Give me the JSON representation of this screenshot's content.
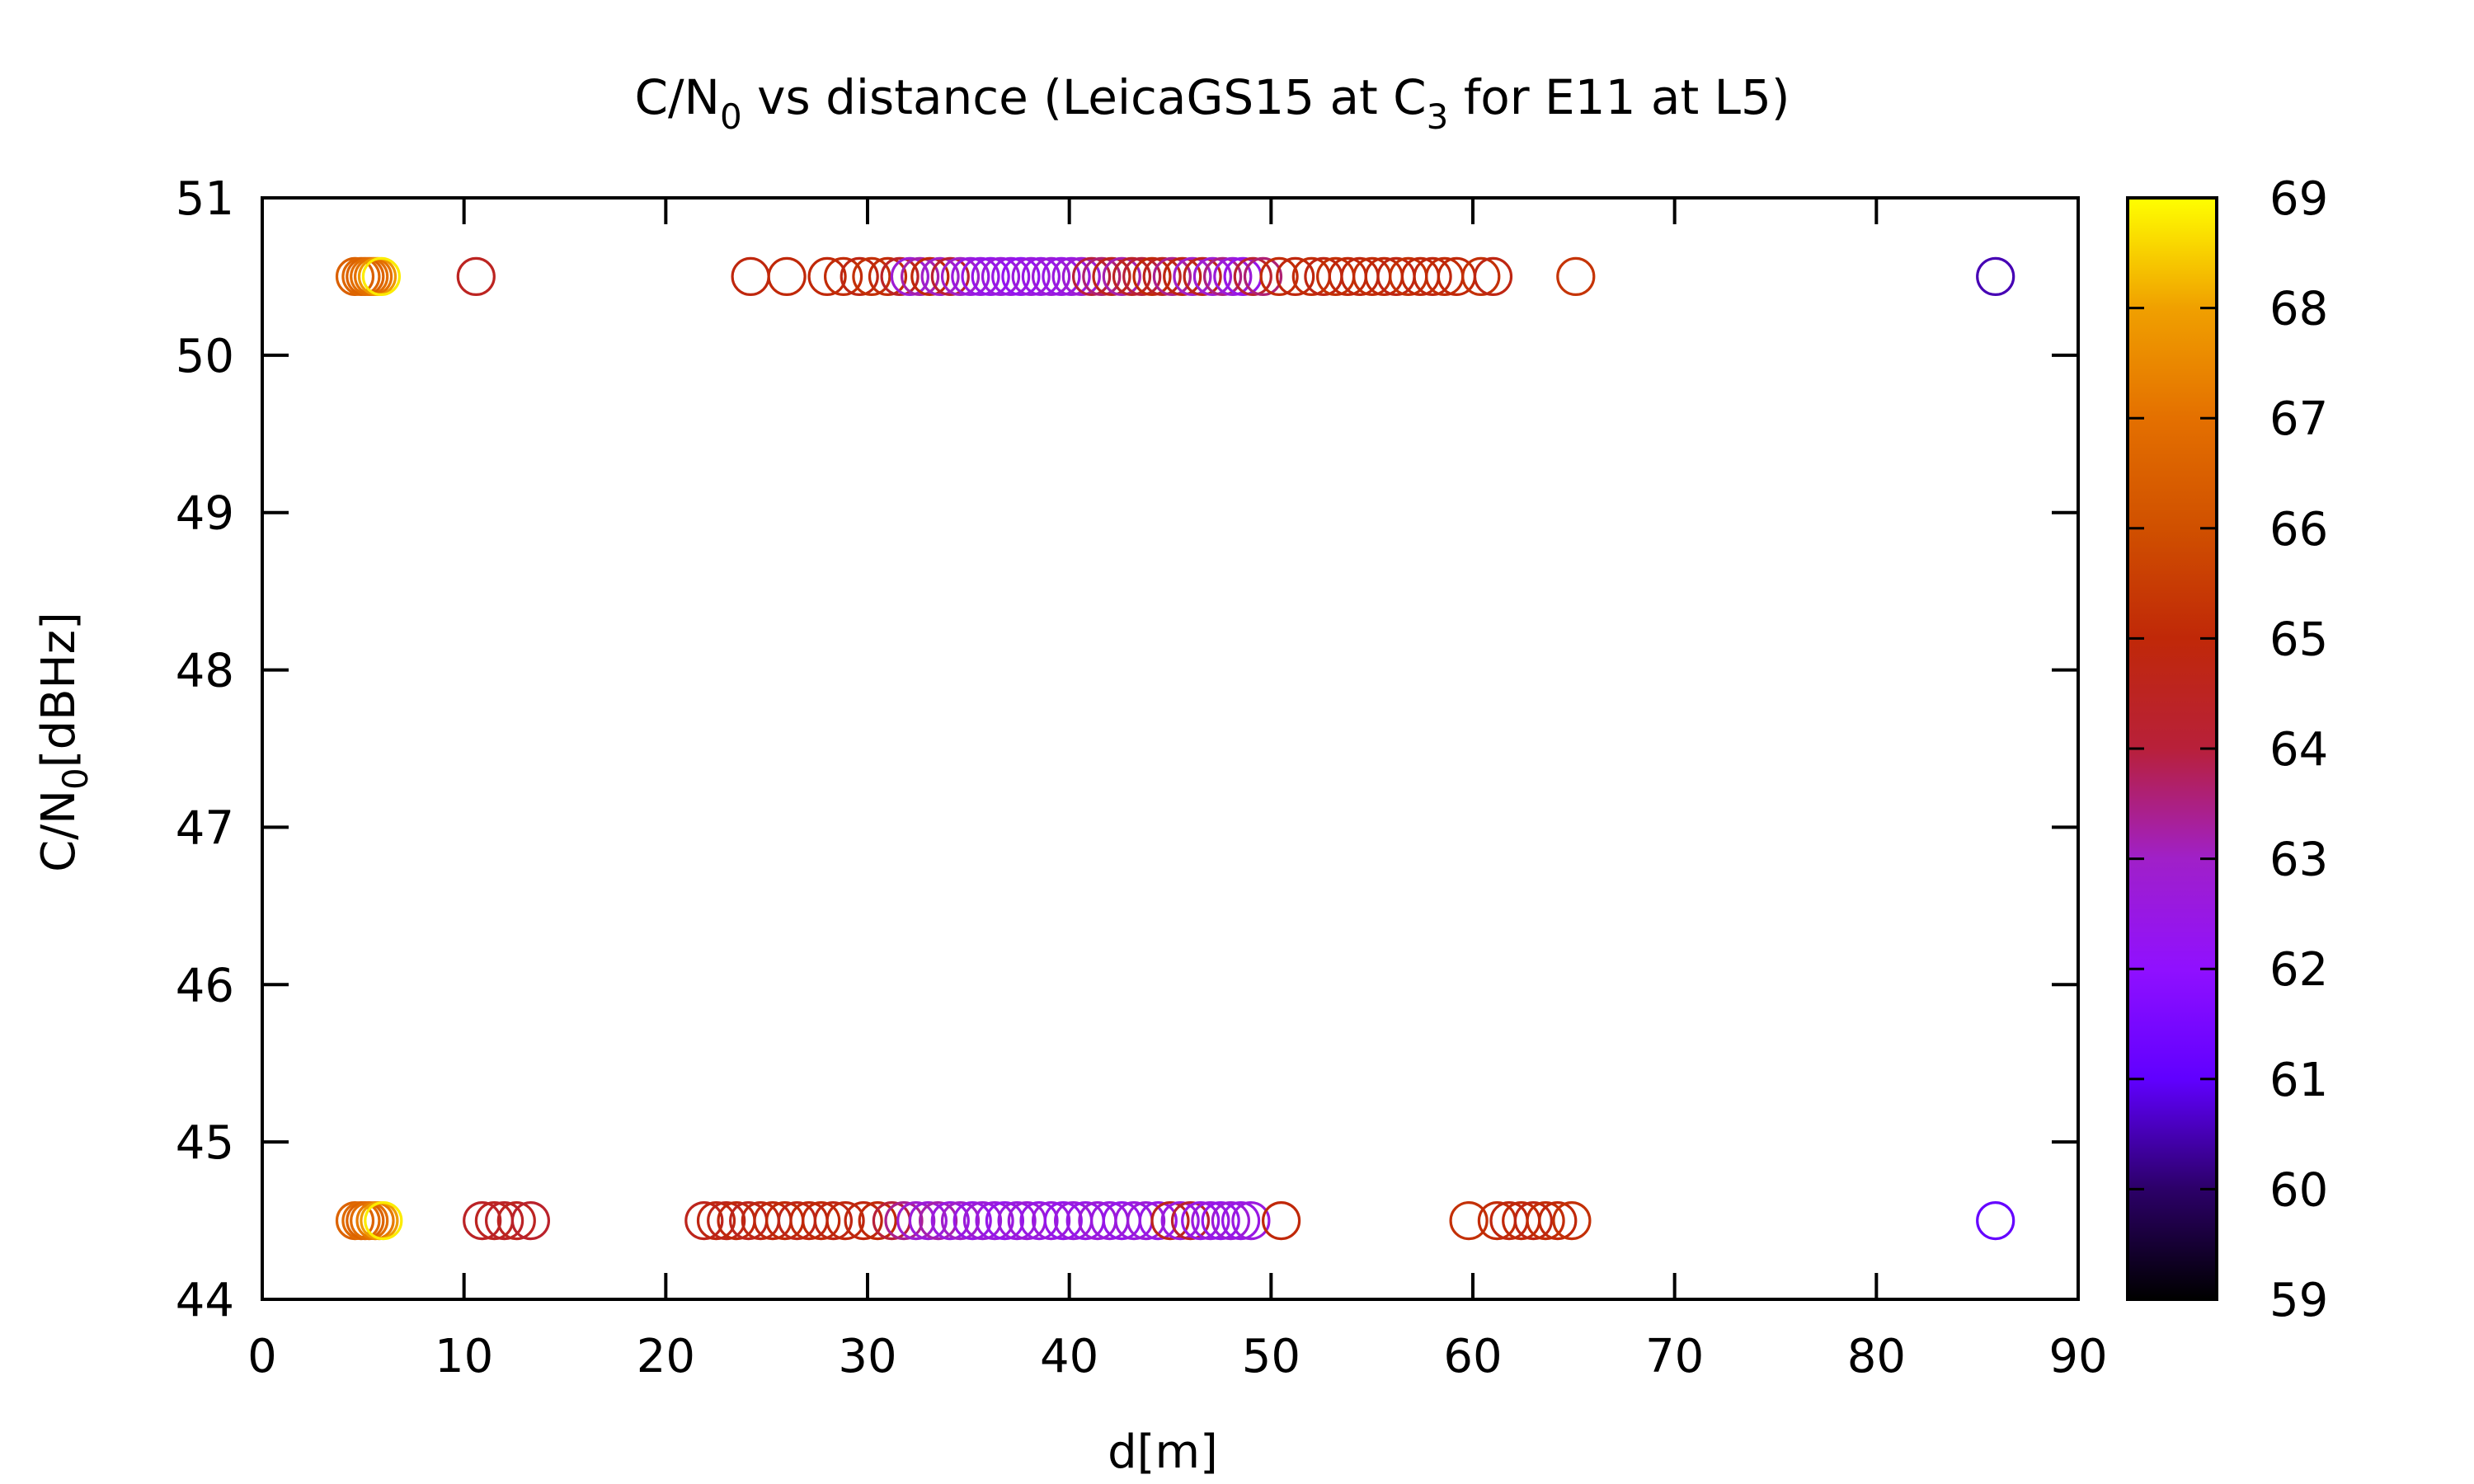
{
  "chart_data": {
    "type": "scatter",
    "title": {
      "main": "C/N",
      "sub0": "0",
      "mid": " vs distance (LeicaGS15 at C",
      "sub3": "3",
      "end": " for E11 at L5)"
    },
    "xlabel": "d[m]",
    "ylabel": {
      "main": "C/N",
      "sub": "0",
      "unit": "[dBHz]"
    },
    "xlim": [
      0,
      90
    ],
    "ylim": [
      44,
      51
    ],
    "xticks": [
      "0",
      "10",
      "20",
      "30",
      "40",
      "50",
      "60",
      "70",
      "80",
      "90"
    ],
    "yticks": [
      "44",
      "45",
      "46",
      "47",
      "48",
      "49",
      "50",
      "51"
    ],
    "colorbar": {
      "range": [
        59,
        69
      ],
      "ticks": [
        "59",
        "60",
        "61",
        "62",
        "63",
        "64",
        "65",
        "66",
        "67",
        "68",
        "69"
      ],
      "palette": "gnuplot black-purple-red-orange-yellow"
    },
    "marker": "open circle",
    "grid": false,
    "series": [
      {
        "y": 50.5,
        "points": [
          [
            4.6,
            66.5
          ],
          [
            4.9,
            66.7
          ],
          [
            5.1,
            66.6
          ],
          [
            5.3,
            66.9
          ],
          [
            5.5,
            67.0
          ],
          [
            5.7,
            67.8
          ],
          [
            5.9,
            68.8
          ],
          [
            10.6,
            64.5
          ],
          [
            24.2,
            64.9
          ],
          [
            26.0,
            65.0
          ],
          [
            28.0,
            65.0
          ],
          [
            28.8,
            65.1
          ],
          [
            29.6,
            64.8
          ],
          [
            30.2,
            65.2
          ],
          [
            31.0,
            65.1
          ],
          [
            31.6,
            64.4
          ],
          [
            32.1,
            62.8
          ],
          [
            32.6,
            63.2
          ],
          [
            33.1,
            65.0
          ],
          [
            33.6,
            63.0
          ],
          [
            34.1,
            64.2
          ],
          [
            34.6,
            63.0
          ],
          [
            35.1,
            62.6
          ],
          [
            35.6,
            62.5
          ],
          [
            36.1,
            62.4
          ],
          [
            36.6,
            62.6
          ],
          [
            37.1,
            62.5
          ],
          [
            37.6,
            62.3
          ],
          [
            38.1,
            62.6
          ],
          [
            38.6,
            62.5
          ],
          [
            39.1,
            62.7
          ],
          [
            39.6,
            62.5
          ],
          [
            40.1,
            62.6
          ],
          [
            40.6,
            62.8
          ],
          [
            41.1,
            64.0
          ],
          [
            41.6,
            63.6
          ],
          [
            42.1,
            64.6
          ],
          [
            42.6,
            63.2
          ],
          [
            43.1,
            64.4
          ],
          [
            43.6,
            64.0
          ],
          [
            44.1,
            65.0
          ],
          [
            44.6,
            64.6
          ],
          [
            45.1,
            63.4
          ],
          [
            45.6,
            64.8
          ],
          [
            46.1,
            63.0
          ],
          [
            46.6,
            64.6
          ],
          [
            47.1,
            62.8
          ],
          [
            47.6,
            63.5
          ],
          [
            48.1,
            62.7
          ],
          [
            48.6,
            62.4
          ],
          [
            49.1,
            64.2
          ],
          [
            49.6,
            63.6
          ],
          [
            50.4,
            65.1
          ],
          [
            51.2,
            64.9
          ],
          [
            52.0,
            65.1
          ],
          [
            52.6,
            64.8
          ],
          [
            53.2,
            65.2
          ],
          [
            53.8,
            65.0
          ],
          [
            54.4,
            64.9
          ],
          [
            55.0,
            65.1
          ],
          [
            55.6,
            65.0
          ],
          [
            56.2,
            64.8
          ],
          [
            56.8,
            65.2
          ],
          [
            57.4,
            65.0
          ],
          [
            58.0,
            64.9
          ],
          [
            58.6,
            65.1
          ],
          [
            59.2,
            65.0
          ],
          [
            60.4,
            65.2
          ],
          [
            61.0,
            64.8
          ],
          [
            65.1,
            65.3
          ],
          [
            85.9,
            60.5
          ]
        ]
      },
      {
        "y": 44.5,
        "points": [
          [
            4.6,
            66.6
          ],
          [
            4.9,
            66.8
          ],
          [
            5.1,
            66.6
          ],
          [
            5.3,
            66.9
          ],
          [
            5.6,
            67.2
          ],
          [
            5.8,
            67.9
          ],
          [
            6.0,
            68.8
          ],
          [
            10.9,
            64.4
          ],
          [
            11.5,
            64.5
          ],
          [
            12.0,
            64.4
          ],
          [
            12.6,
            64.5
          ],
          [
            13.3,
            64.3
          ],
          [
            21.9,
            64.6
          ],
          [
            22.5,
            64.8
          ],
          [
            23.0,
            64.7
          ],
          [
            23.5,
            64.9
          ],
          [
            24.1,
            64.6
          ],
          [
            24.7,
            64.8
          ],
          [
            25.3,
            64.9
          ],
          [
            25.9,
            65.0
          ],
          [
            26.5,
            64.7
          ],
          [
            27.1,
            64.9
          ],
          [
            27.7,
            65.0
          ],
          [
            28.3,
            64.8
          ],
          [
            28.9,
            64.9
          ],
          [
            29.8,
            64.9
          ],
          [
            30.5,
            65.0
          ],
          [
            31.2,
            64.0
          ],
          [
            31.8,
            63.4
          ],
          [
            32.4,
            62.9
          ],
          [
            33.0,
            62.7
          ],
          [
            33.5,
            63.2
          ],
          [
            34.1,
            62.6
          ],
          [
            34.6,
            63.0
          ],
          [
            35.2,
            62.5
          ],
          [
            35.7,
            62.7
          ],
          [
            36.3,
            62.6
          ],
          [
            36.8,
            62.4
          ],
          [
            37.4,
            62.6
          ],
          [
            37.9,
            62.7
          ],
          [
            38.5,
            62.5
          ],
          [
            39.1,
            62.6
          ],
          [
            39.7,
            62.4
          ],
          [
            40.2,
            62.6
          ],
          [
            40.8,
            62.5
          ],
          [
            41.4,
            62.7
          ],
          [
            42.0,
            62.6
          ],
          [
            42.6,
            62.4
          ],
          [
            43.2,
            62.6
          ],
          [
            43.8,
            62.7
          ],
          [
            44.4,
            62.5
          ],
          [
            45.0,
            64.6
          ],
          [
            45.5,
            62.6
          ],
          [
            46.0,
            64.2
          ],
          [
            46.5,
            62.5
          ],
          [
            47.0,
            62.6
          ],
          [
            47.5,
            62.4
          ],
          [
            48.0,
            62.7
          ],
          [
            48.5,
            62.5
          ],
          [
            49.0,
            62.6
          ],
          [
            50.5,
            65.0
          ],
          [
            59.8,
            65.2
          ],
          [
            61.2,
            65.1
          ],
          [
            61.8,
            64.9
          ],
          [
            62.4,
            65.0
          ],
          [
            63.0,
            64.8
          ],
          [
            63.6,
            65.1
          ],
          [
            64.2,
            65.0
          ],
          [
            64.9,
            65.2
          ],
          [
            85.9,
            61.1
          ]
        ]
      }
    ]
  }
}
